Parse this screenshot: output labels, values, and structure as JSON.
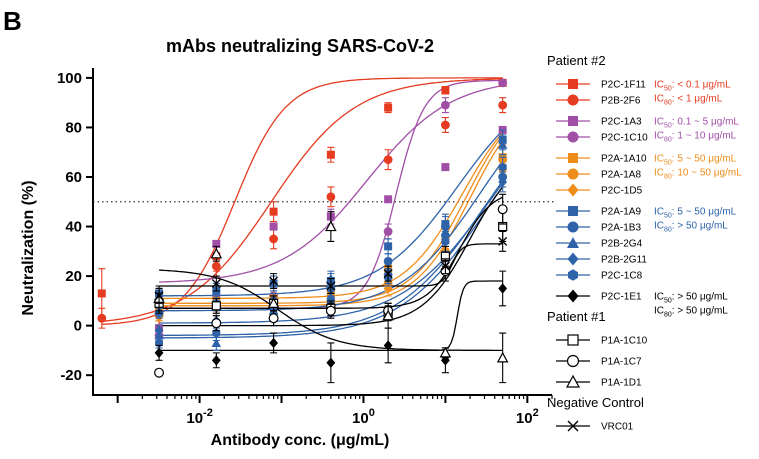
{
  "panel_label": "B",
  "chart_data": {
    "type": "scatter",
    "title": "mAbs neutralizing SARS-CoV-2",
    "xlabel": "Antibody conc. (μg/mL)",
    "ylabel": "Neutralization (%)",
    "x_scale": "log",
    "xlim": [
      0.0005,
      200
    ],
    "ylim": [
      -28,
      104
    ],
    "grid": false,
    "legend_position": "right",
    "reference_line": {
      "y": 50,
      "style": "dotted"
    },
    "x_ticks": [
      {
        "value": 0.01,
        "base": "10",
        "exp": "-2"
      },
      {
        "value": 1,
        "base": "10",
        "exp": "0"
      },
      {
        "value": 100,
        "base": "10",
        "exp": "2"
      }
    ],
    "y_ticks": [
      -20,
      0,
      20,
      40,
      60,
      80,
      100
    ],
    "legend_groups": [
      {
        "title": "Patient #2",
        "entries": [
          {
            "series": [
              0,
              1
            ],
            "notes": [
              {
                "pre": "IC",
                "sub": "50",
                "post": ": < 0.1 μg/mL",
                "color": "#e53b21"
              },
              {
                "pre": "IC",
                "sub": "80",
                "post": ": < 1 μg/mL",
                "color": "#e53b21"
              }
            ]
          },
          {
            "series": [
              2,
              3
            ],
            "notes": [
              {
                "pre": "IC",
                "sub": "50",
                "post": ": 0.1 ~ 5 μg/mL",
                "color": "#a14fa6"
              },
              {
                "pre": "IC",
                "sub": "80",
                "post": ": 1 ~ 10 μg/mL",
                "color": "#a14fa6"
              }
            ]
          },
          {
            "series": [
              4,
              5,
              6
            ],
            "notes": [
              {
                "pre": "IC",
                "sub": "50",
                "post": ": 5 ~ 50 μg/mL",
                "color": "#ef8d1a"
              },
              {
                "pre": "IC",
                "sub": "80",
                "post": ": 10 ~ 50 μg/mL",
                "color": "#ef8d1a"
              }
            ]
          },
          {
            "series": [
              7,
              8,
              9,
              10,
              11
            ],
            "notes": [
              {
                "pre": "IC",
                "sub": "50",
                "post": ": 5 ~ 50 μg/mL",
                "color": "#2e63a9"
              },
              {
                "pre": "IC",
                "sub": "80",
                "post": ": > 50 μg/mL",
                "color": "#2e63a9"
              }
            ]
          },
          {
            "series": [
              12
            ],
            "notes": [
              {
                "pre": "IC",
                "sub": "50",
                "post": ": > 50 μg/mL",
                "color": "#000000"
              },
              {
                "pre": "IC",
                "sub": "80",
                "post": ": > 50 μg/mL",
                "color": "#000000"
              }
            ]
          }
        ]
      },
      {
        "title": "Patient #1",
        "entries": [
          {
            "series": [
              13
            ],
            "notes": []
          },
          {
            "series": [
              14
            ],
            "notes": []
          },
          {
            "series": [
              15
            ],
            "notes": []
          }
        ]
      },
      {
        "title": "Negative Control",
        "entries": [
          {
            "series": [
              16
            ],
            "notes": []
          }
        ]
      }
    ],
    "series": [
      {
        "name": "P2C-1F11",
        "color": "#e53b21",
        "marker": "square-filled",
        "x": [
          0.00064,
          0.0032,
          0.016,
          0.08,
          0.4,
          2,
          10,
          50
        ],
        "y": [
          13,
          13,
          28,
          46,
          69,
          88,
          95,
          98
        ],
        "err": [
          10,
          2,
          6,
          4,
          3,
          2,
          1.5,
          1
        ],
        "curve": [
          0.0268,
          1.4,
          0,
          100
        ]
      },
      {
        "name": "P2B-2F6",
        "color": "#e53b21",
        "marker": "circle-filled",
        "x": [
          0.00064,
          0.0032,
          0.016,
          0.08,
          0.4,
          2,
          10,
          50
        ],
        "y": [
          3,
          5,
          24,
          35,
          52,
          67,
          81,
          89
        ],
        "err": [
          4,
          5,
          4,
          4,
          4,
          4,
          3,
          3
        ],
        "curve": [
          0.075,
          0.85,
          0,
          100
        ]
      },
      {
        "name": "P2C-1A3",
        "color": "#a14fa6",
        "marker": "square-filled",
        "x": [
          0.0032,
          0.016,
          0.08,
          0.4,
          2,
          10,
          50
        ],
        "y": [
          -1,
          33,
          40,
          44,
          51,
          64,
          79
        ],
        "err": [
          0,
          0,
          0,
          3,
          0,
          0,
          0
        ],
        "curve": [
          1.1,
          0.85,
          17,
          100
        ]
      },
      {
        "name": "P2C-1C10",
        "color": "#a14fa6",
        "marker": "circle-filled",
        "x": [
          0.0032,
          0.016,
          0.08,
          0.4,
          2,
          10,
          50
        ],
        "y": [
          -4,
          11,
          12,
          7,
          38,
          89,
          98
        ],
        "err": [
          2,
          3,
          3,
          3,
          3,
          3,
          1
        ],
        "curve": [
          2.5,
          2.5,
          7,
          99
        ]
      },
      {
        "name": "P2A-1A10",
        "color": "#ef8d1a",
        "marker": "square-filled",
        "x": [
          0.0032,
          0.016,
          0.08,
          0.4,
          2,
          10,
          50
        ],
        "y": [
          6,
          10,
          11,
          13,
          23,
          35,
          68
        ],
        "err": [
          2,
          3,
          3,
          3,
          3,
          4,
          6
        ],
        "curve": [
          16,
          1.2,
          11,
          95
        ]
      },
      {
        "name": "P2A-1A8",
        "color": "#ef8d1a",
        "marker": "circle-filled",
        "x": [
          0.0032,
          0.016,
          0.08,
          0.4,
          2,
          10,
          50
        ],
        "y": [
          4,
          8,
          9,
          10,
          17,
          30,
          67
        ],
        "err": [
          2,
          3,
          3,
          3,
          3,
          4,
          6
        ],
        "curve": [
          18,
          1.3,
          9,
          95
        ]
      },
      {
        "name": "P2C-1D5",
        "color": "#ef8d1a",
        "marker": "diamond-filled",
        "x": [
          0.0032,
          0.016,
          0.08,
          0.4,
          2,
          10,
          50
        ],
        "y": [
          4,
          7,
          8,
          10,
          15,
          30,
          63
        ],
        "err": [
          2,
          3,
          3,
          3,
          3,
          4,
          5
        ],
        "curve": [
          20,
          1.3,
          8,
          95
        ]
      },
      {
        "name": "P2A-1A9",
        "color": "#2e63a9",
        "marker": "square-filled",
        "x": [
          0.0032,
          0.016,
          0.08,
          0.4,
          2,
          10,
          50
        ],
        "y": [
          13,
          14,
          17,
          18,
          32,
          41,
          75
        ],
        "err": [
          2,
          3,
          3,
          3,
          3,
          4,
          4
        ],
        "curve": [
          14,
          0.9,
          12,
          100
        ]
      },
      {
        "name": "P2A-1B3",
        "color": "#2e63a9",
        "marker": "circle-filled",
        "x": [
          0.0032,
          0.016,
          0.08,
          0.4,
          2,
          10,
          50
        ],
        "y": [
          5,
          9,
          10,
          15,
          26,
          40,
          60
        ],
        "err": [
          2,
          3,
          3,
          3,
          3,
          4,
          4
        ],
        "curve": [
          26,
          0.9,
          6,
          100
        ]
      },
      {
        "name": "P2B-2G4",
        "color": "#2e63a9",
        "marker": "triangle-filled",
        "x": [
          0.0032,
          0.016,
          0.08,
          0.4,
          2,
          10,
          50
        ],
        "y": [
          -4,
          -7,
          6,
          19,
          22,
          38,
          73
        ],
        "err": [
          2,
          3,
          3,
          3,
          3,
          4,
          4
        ],
        "curve": [
          30,
          0.8,
          -4,
          100
        ]
      },
      {
        "name": "P2B-2G11",
        "color": "#2e63a9",
        "marker": "diamond-filled",
        "x": [
          0.0032,
          0.016,
          0.08,
          0.4,
          2,
          10,
          50
        ],
        "y": [
          -2,
          2,
          5,
          11,
          19,
          36,
          58
        ],
        "err": [
          2,
          3,
          3,
          3,
          3,
          4,
          4
        ],
        "curve": [
          35,
          0.8,
          1,
          100
        ]
      },
      {
        "name": "P2C-1C8",
        "color": "#2e63a9",
        "marker": "hexagon-filled",
        "x": [
          0.0032,
          0.016,
          0.08,
          0.4,
          2,
          10,
          50
        ],
        "y": [
          -7,
          -3,
          3,
          10,
          20,
          34,
          64
        ],
        "err": [
          2,
          3,
          3,
          3,
          3,
          4,
          4
        ],
        "curve": [
          33,
          0.8,
          -5,
          100
        ]
      },
      {
        "name": "P2C-1E1",
        "color": "#000000",
        "marker": "diamond-filled",
        "x": [
          0.0032,
          0.016,
          0.08,
          0.4,
          2,
          10,
          50
        ],
        "y": [
          -11,
          -14,
          -7,
          -15,
          -8,
          -14,
          15
        ],
        "err": [
          3,
          3,
          4,
          8,
          7,
          5,
          7
        ],
        "curve": [
          14,
          12,
          -10,
          18
        ]
      },
      {
        "name": "P1A-1C10",
        "color": "#000000",
        "marker": "square-open",
        "x": [
          0.0032,
          0.016,
          0.08,
          0.4,
          2,
          10,
          50
        ],
        "y": [
          9,
          8,
          9,
          7,
          5,
          28,
          40
        ],
        "err": [
          4,
          3,
          3,
          3,
          3,
          4,
          6
        ],
        "curve": [
          15,
          2.2,
          7,
          55
        ]
      },
      {
        "name": "P1A-1C7",
        "color": "#000000",
        "marker": "circle-open",
        "x": [
          0.0032,
          0.016,
          0.08,
          0.4,
          2,
          10,
          50
        ],
        "y": [
          -19,
          1,
          3,
          6,
          6,
          22,
          47
        ],
        "err": [
          0,
          3,
          3,
          3,
          3,
          4,
          6
        ],
        "curve": [
          20,
          1.5,
          0,
          70
        ]
      },
      {
        "name": "P1A-1D1",
        "color": "#000000",
        "marker": "triangle-open",
        "x": [
          0.0032,
          0.016,
          0.08,
          0.4,
          2,
          10,
          50
        ],
        "y": [
          11,
          29,
          9,
          40,
          4,
          -11,
          -13
        ],
        "err": [
          5,
          3,
          3,
          6,
          5,
          2,
          10
        ],
        "curve": [
          0.09,
          1.2,
          23,
          -10
        ]
      },
      {
        "name": "VRC01",
        "color": "#000000",
        "marker": "x",
        "x": [
          0.0032,
          0.016,
          0.08,
          0.4,
          2,
          10,
          50
        ],
        "y": [
          12,
          17,
          18,
          16,
          21,
          24,
          34
        ],
        "err": [
          3,
          3,
          3,
          3,
          3,
          3,
          4
        ],
        "curve": [
          12,
          7,
          16,
          33
        ]
      }
    ]
  }
}
